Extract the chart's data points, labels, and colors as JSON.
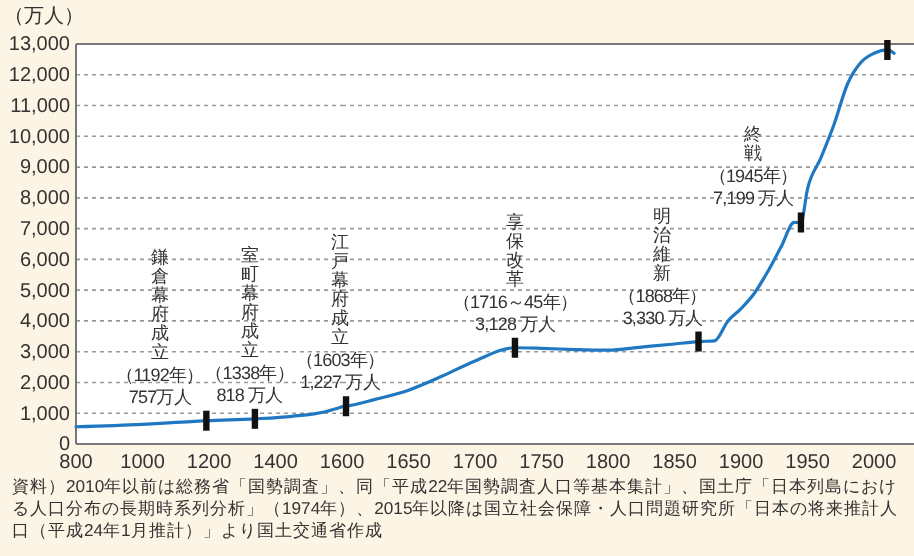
{
  "chart_data": [
    {
      "type": "line",
      "ylabel": "（万人）",
      "xlim": [
        800,
        1600
      ],
      "xticks": [
        800,
        1000,
        1200,
        1400,
        1600
      ],
      "ylim": [
        0,
        13000
      ],
      "yticks": [
        0,
        {
          "value": 1000,
          "label": "1,000"
        },
        {
          "value": 2000,
          "label": "2,000"
        },
        {
          "value": 3000,
          "label": "3,000"
        },
        {
          "value": 4000,
          "label": "4,000"
        },
        {
          "value": 5000,
          "label": "5,000"
        },
        {
          "value": 6000,
          "label": "6,000"
        },
        {
          "value": 7000,
          "label": "7,000"
        },
        {
          "value": 8000,
          "label": "8,000"
        },
        {
          "value": 9000,
          "label": "9,000"
        },
        {
          "value": 10000,
          "label": "10,000"
        },
        {
          "value": 11000,
          "label": "11,000"
        },
        {
          "value": 12000,
          "label": "12,000"
        },
        {
          "value": 13000,
          "label": "13,000"
        }
      ],
      "grid": "y",
      "series": [
        {
          "color": "#1f78c1",
          "x": [
            800,
            1000,
            1100,
            1192,
            1338,
            1450,
            1550,
            1600
          ],
          "values": [
            560,
            640,
            700,
            757,
            818,
            900,
            1050,
            1210
          ]
        },
        {
          "type": "scatter",
          "marker": "square",
          "color": "#111111",
          "x": [
            1192,
            1338
          ],
          "values": [
            757,
            818
          ]
        }
      ],
      "annotations": [
        "鎌倉幕府成立",
        {
          "text": "（1192年）",
          "x": 1192,
          "y": 757
        },
        {
          "text": "757万人",
          "x": 1192,
          "y": 757
        },
        "室町幕府成立",
        {
          "text": "（1338年）",
          "x": 1338,
          "y": 818
        },
        {
          "text": "818 万人",
          "x": 1338,
          "y": 818
        },
        "資料）2010年以前は総務省「国勢調査」、同「平成22年国勢調査人口等基本集計」、国土庁「日本列島における人口分布の長期時系列分析」（1974年）、2015年以降は国立社会保障・人口問題研究所「日本の将来推計人口（平成24年1月推計）」より国土交通省作成"
      ]
    },
    {
      "type": "line",
      "tick_labels": "x",
      "xlim": [
        1600,
        2030
      ],
      "xticks": [
        {
          "value": 1600,
          "label": null
        },
        1650,
        1700,
        1750,
        1800,
        1850,
        1900,
        1950,
        2000
      ],
      "ylim": [
        0,
        13000
      ],
      "yticks": [
        0,
        1000,
        2000,
        3000,
        4000,
        5000,
        6000,
        7000,
        8000,
        9000,
        10000,
        11000,
        12000,
        13000
      ],
      "grid": "y",
      "series": [
        {
          "color": "#1f78c1",
          "x": [
            1600,
            1603,
            1625,
            1650,
            1675,
            1700,
            1730,
            1750,
            1775,
            1800,
            1825,
            1850,
            1868,
            1880,
            1890,
            1900,
            1910,
            1920,
            1930,
            1940,
            1945,
            1950,
            1960,
            1970,
            1980,
            1990,
            2000,
            2010,
            2015
          ],
          "values": [
            1210,
            1227,
            1450,
            1750,
            2200,
            2700,
            3128,
            3110,
            3070,
            3050,
            3150,
            3250,
            3330,
            3350,
            3990,
            4400,
            4900,
            5600,
            6400,
            7200,
            7199,
            8300,
            9300,
            10400,
            11700,
            12400,
            12700,
            12806,
            12700
          ]
        },
        {
          "type": "scatter",
          "marker": "square",
          "color": "#111111",
          "x": [
            1603,
            1730,
            1868,
            1945,
            2010
          ],
          "values": [
            1227,
            3128,
            3330,
            7199,
            12806
          ]
        }
      ],
      "annotations": [
        "江戸幕府成立",
        {
          "text": "（1603年）",
          "x": 1603,
          "y": 1227
        },
        {
          "text": "1,227 万人",
          "x": 1603,
          "y": 1227
        },
        "享保改革",
        {
          "text": "（1716～45年）",
          "x": 1730,
          "y": 3128
        },
        {
          "text": "3,128 万人",
          "x": 1730,
          "y": 3128
        },
        "明治維新",
        {
          "text": "（1868年）",
          "x": 1868,
          "y": 3330
        },
        {
          "text": "3,330 万人",
          "x": 1868,
          "y": 3330
        },
        "終戦",
        {
          "text": "（1945年）",
          "x": 1945,
          "y": 7199
        },
        {
          "text": "7,199 万人",
          "x": 1945,
          "y": 7199
        }
      ]
    }
  ]
}
